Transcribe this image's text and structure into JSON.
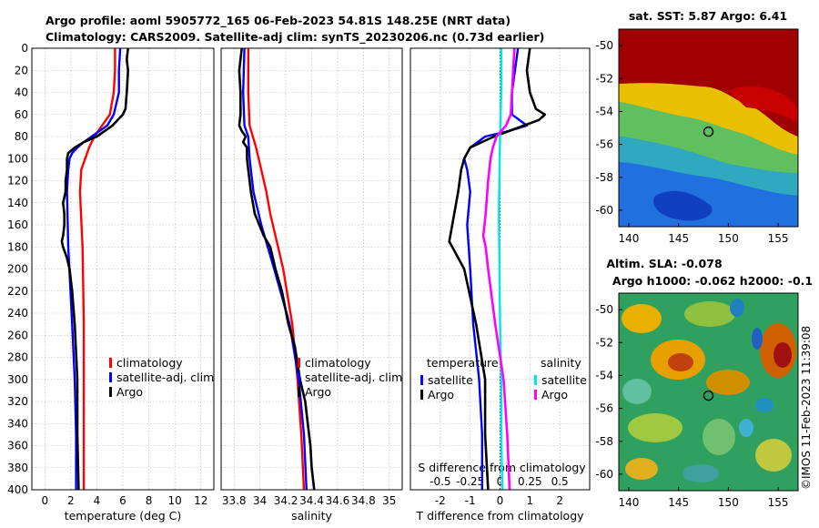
{
  "title": {
    "line1": "Argo profile: aoml 5905772_165 06-Feb-2023 54.81S 148.25E (NRT data)",
    "line2": "Climatology: CARS2009. Satellite-adj clim: synTS_20230206.nc (0.73d earlier)"
  },
  "colors": {
    "climatology": "#ff0000",
    "satellite": "#0000ff",
    "argo": "#000000",
    "sat_salinity": "#00e5ee",
    "argo_salinity": "#ff00ff"
  },
  "chart_data": [
    {
      "type": "line",
      "id": "temperature",
      "xlabel": "temperature (deg C)",
      "ylabel": "",
      "xlim": [
        -1,
        13
      ],
      "ylim": [
        400,
        0
      ],
      "xticks": [
        0,
        2,
        4,
        6,
        8,
        10,
        12
      ],
      "xtick_labels": [
        "0",
        "2",
        "4",
        "6",
        "8",
        "10",
        "12"
      ],
      "yticks": [
        0,
        20,
        40,
        60,
        80,
        100,
        120,
        140,
        160,
        180,
        200,
        220,
        240,
        260,
        280,
        300,
        320,
        340,
        360,
        380,
        400
      ],
      "ytick_labels": [
        "0",
        "20",
        "40",
        "60",
        "80",
        "100",
        "120",
        "140",
        "160",
        "180",
        "200",
        "220",
        "240",
        "260",
        "280",
        "300",
        "320",
        "340",
        "360",
        "380",
        "400"
      ],
      "legend": [
        "climatology",
        "satellite-adj. clim",
        "Argo"
      ],
      "series": [
        {
          "name": "climatology",
          "color": "#ff0000",
          "depth": [
            0,
            20,
            40,
            60,
            70,
            80,
            90,
            100,
            110,
            130,
            180,
            250,
            300,
            350,
            400
          ],
          "values": [
            5.4,
            5.4,
            5.3,
            5.0,
            4.4,
            3.8,
            3.4,
            3.1,
            2.8,
            2.7,
            2.9,
            3.0,
            3.0,
            3.0,
            3.0
          ]
        },
        {
          "name": "satellite-adj. clim",
          "color": "#0000ff",
          "depth": [
            0,
            20,
            40,
            60,
            70,
            80,
            85,
            90,
            95,
            100,
            110,
            130,
            180,
            250,
            300,
            350,
            400
          ],
          "values": [
            5.8,
            5.7,
            5.7,
            5.3,
            4.8,
            3.6,
            3.0,
            2.5,
            2.1,
            1.9,
            1.8,
            1.7,
            1.8,
            2.1,
            2.3,
            2.4,
            2.4
          ]
        },
        {
          "name": "Argo",
          "color": "#000000",
          "depth": [
            0,
            10,
            20,
            40,
            55,
            60,
            70,
            80,
            85,
            90,
            95,
            100,
            110,
            120,
            130,
            140,
            150,
            160,
            170,
            175,
            180,
            190,
            200,
            220,
            250,
            300,
            350,
            400
          ],
          "values": [
            6.4,
            6.3,
            6.4,
            6.3,
            6.2,
            6.0,
            5.2,
            4.0,
            3.0,
            2.3,
            1.8,
            1.7,
            1.7,
            1.6,
            1.6,
            1.4,
            1.5,
            1.5,
            1.4,
            1.3,
            1.4,
            1.7,
            1.9,
            2.1,
            2.3,
            2.5,
            2.5,
            2.6
          ]
        }
      ]
    },
    {
      "type": "line",
      "id": "salinity",
      "xlabel": "salinity",
      "xlim": [
        33.7,
        35.1
      ],
      "ylim": [
        400,
        0
      ],
      "xticks": [
        33.8,
        34,
        34.2,
        34.4,
        34.6,
        34.8,
        35
      ],
      "xtick_labels": [
        "33.8",
        "34",
        "34.2",
        "34.4",
        "34.6",
        "34.8",
        "35"
      ],
      "legend": [
        "climatology",
        "satellite-adj. clim",
        "Argo"
      ],
      "series": [
        {
          "name": "climatology",
          "color": "#ff0000",
          "depth": [
            0,
            40,
            70,
            90,
            110,
            130,
            150,
            170,
            200,
            250,
            300,
            350,
            400
          ],
          "values": [
            33.91,
            33.91,
            33.92,
            33.97,
            34.01,
            34.05,
            34.08,
            34.12,
            34.18,
            34.25,
            34.29,
            34.32,
            34.34
          ]
        },
        {
          "name": "satellite-adj. clim",
          "color": "#0000ff",
          "depth": [
            0,
            40,
            70,
            80,
            100,
            130,
            160,
            200,
            250,
            300,
            350,
            400
          ],
          "values": [
            33.88,
            33.87,
            33.88,
            33.91,
            33.92,
            33.95,
            34.01,
            34.11,
            34.23,
            34.3,
            34.34,
            34.36
          ]
        },
        {
          "name": "Argo",
          "color": "#000000",
          "depth": [
            0,
            20,
            40,
            60,
            70,
            75,
            80,
            85,
            90,
            100,
            110,
            130,
            150,
            170,
            180,
            190,
            200,
            220,
            250,
            270,
            300,
            320,
            340,
            360,
            380,
            400
          ],
          "values": [
            33.86,
            33.84,
            33.85,
            33.85,
            33.84,
            33.86,
            33.89,
            33.87,
            33.9,
            33.9,
            33.91,
            33.93,
            33.96,
            34.03,
            34.08,
            34.1,
            34.12,
            34.17,
            34.22,
            34.27,
            34.31,
            34.35,
            34.37,
            34.39,
            34.4,
            34.42
          ]
        }
      ]
    },
    {
      "type": "line",
      "id": "difference",
      "xlabel": "T difference from climatology",
      "xlabel_top": "S difference from climatology",
      "xlim": [
        -3,
        3
      ],
      "ylim": [
        400,
        0
      ],
      "xticks": [
        -2,
        -1,
        0,
        1,
        2
      ],
      "xtick_labels": [
        "-2",
        "-1",
        "0",
        "1",
        "2"
      ],
      "xticks_s": [
        -0.5,
        -0.25,
        0,
        0.25,
        0.5
      ],
      "xtick_labels_s": [
        "-0.5",
        "-0.25",
        "0",
        "0.25",
        "0.5"
      ],
      "legend_temperature_title": "temperature",
      "legend_salinity_title": "salinity",
      "legend_temperature": [
        "satellite",
        "Argo"
      ],
      "legend_salinity": [
        "satellite",
        "Argo"
      ],
      "series": [
        {
          "name": "T satellite",
          "color": "#0000ff",
          "depth": [
            0,
            20,
            40,
            60,
            70,
            75,
            80,
            90,
            100,
            110,
            130,
            160,
            200,
            250,
            300,
            350,
            400
          ],
          "values": [
            0.6,
            0.5,
            0.4,
            0.4,
            0.9,
            0.3,
            -0.5,
            -1.0,
            -1.2,
            -1.1,
            -1.0,
            -1.1,
            -1.0,
            -0.9,
            -0.7,
            -0.6,
            -0.6
          ]
        },
        {
          "name": "T Argo",
          "color": "#000000",
          "depth": [
            0,
            20,
            40,
            55,
            60,
            65,
            70,
            75,
            80,
            90,
            100,
            110,
            130,
            160,
            175,
            180,
            200,
            250,
            300,
            350,
            400
          ],
          "values": [
            1.0,
            0.9,
            1.0,
            1.2,
            1.5,
            1.3,
            0.8,
            0.3,
            -0.2,
            -1.0,
            -1.2,
            -1.3,
            -1.4,
            -1.6,
            -1.7,
            -1.6,
            -1.2,
            -0.8,
            -0.5,
            -0.5,
            -0.4
          ]
        },
        {
          "name": "S satellite",
          "color": "#00e5ee",
          "depth": [
            0,
            40,
            80,
            150,
            250,
            300,
            350,
            400
          ],
          "values": [
            0.01,
            0.01,
            0.0,
            -0.01,
            0.0,
            0.01,
            0.01,
            0.02
          ]
        },
        {
          "name": "S Argo",
          "color": "#ff00ff",
          "depth": [
            0,
            20,
            40,
            60,
            70,
            80,
            90,
            100,
            120,
            150,
            170,
            180,
            200,
            250,
            300,
            350,
            400
          ],
          "values": [
            0.12,
            0.11,
            0.1,
            0.09,
            0.05,
            -0.03,
            -0.06,
            -0.08,
            -0.1,
            -0.12,
            -0.14,
            -0.12,
            -0.1,
            -0.04,
            0.03,
            0.06,
            0.08
          ]
        }
      ]
    },
    {
      "type": "heatmap",
      "id": "sst_map",
      "title": "sat. SST: 5.87 Argo: 6.41",
      "xlim": [
        139,
        157
      ],
      "ylim": [
        -61,
        -49
      ],
      "xticks": [
        140,
        145,
        150,
        155
      ],
      "xtick_labels": [
        "140",
        "145",
        "150",
        "155"
      ],
      "yticks": [
        -50,
        -52,
        -54,
        -56,
        -58,
        -60
      ],
      "ytick_labels": [
        "-50",
        "-52",
        "-54",
        "-56",
        "-58",
        "-60"
      ],
      "marker": {
        "lon": 148.25,
        "lat": -54.81
      }
    },
    {
      "type": "heatmap",
      "id": "sla_map",
      "title_line1": "Altim. SLA: -0.078",
      "title_line2": "Argo h1000: -0.062 h2000: -0.1",
      "xlim": [
        139,
        157
      ],
      "ylim": [
        -61,
        -49
      ],
      "xticks": [
        140,
        145,
        150,
        155
      ],
      "xtick_labels": [
        "140",
        "145",
        "150",
        "155"
      ],
      "yticks": [
        -50,
        -52,
        -54,
        -56,
        -58,
        -60
      ],
      "ytick_labels": [
        "-50",
        "-52",
        "-54",
        "-56",
        "-58",
        "-60"
      ],
      "marker": {
        "lon": 148.25,
        "lat": -54.81
      }
    }
  ],
  "timestamp": "©IMOS 11-Feb-2023 11:39:08"
}
